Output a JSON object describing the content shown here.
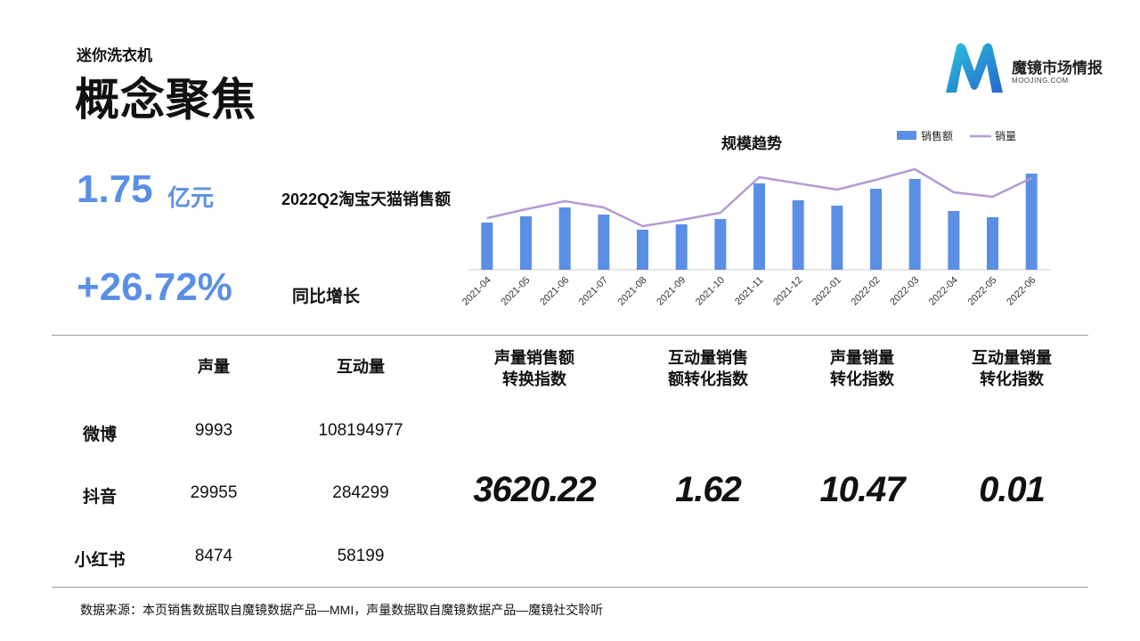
{
  "header": {
    "subtitle": "迷你洗衣机",
    "title": "概念聚焦"
  },
  "brand": {
    "name": "魔镜市场情报",
    "url": "MOOJING.COM",
    "logo_colors": [
      "#1aa3c9",
      "#3a6fd8"
    ]
  },
  "kpis": {
    "sales_value": "1.75",
    "sales_unit": "亿元",
    "sales_label": "2022Q2淘宝天猫销售额",
    "growth_value": "+26.72%",
    "growth_label": "同比增长"
  },
  "chart_data": {
    "type": "bar",
    "title": "规模趋势",
    "categories": [
      "2021-04",
      "2021-05",
      "2021-06",
      "2021-07",
      "2021-08",
      "2021-09",
      "2021-10",
      "2021-11",
      "2021-12",
      "2022-01",
      "2022-02",
      "2022-03",
      "2022-04",
      "2022-05",
      "2022-06"
    ],
    "series": [
      {
        "name": "销售额",
        "type": "bar",
        "color": "#5b8fe6",
        "values": [
          53,
          60,
          70,
          62,
          45,
          51,
          57,
          97,
          78,
          72,
          91,
          102,
          66,
          59,
          108
        ]
      },
      {
        "name": "销量",
        "type": "line",
        "color": "#b49ad6",
        "values": [
          58,
          68,
          77,
          70,
          49,
          56,
          64,
          104,
          97,
          90,
          101,
          113,
          87,
          82,
          103
        ]
      }
    ],
    "ylim": [
      0,
      120
    ],
    "legend_position": "top-right",
    "grid": false
  },
  "table": {
    "headers": [
      "声量",
      "互动量"
    ],
    "index_headers": [
      [
        "声量销售额",
        "转换指数"
      ],
      [
        "互动量销售",
        "额转化指数"
      ],
      [
        "声量销量",
        "转化指数"
      ],
      [
        "互动量销量",
        "转化指数"
      ]
    ],
    "rows": [
      {
        "platform": "微博",
        "volume": "9993",
        "interaction": "108194977"
      },
      {
        "platform": "抖音",
        "volume": "29955",
        "interaction": "284299"
      },
      {
        "platform": "小红书",
        "volume": "8474",
        "interaction": "58199"
      }
    ],
    "index_values": [
      "3620.22",
      "1.62",
      "10.47",
      "0.01"
    ]
  },
  "footer": {
    "source": "数据来源：本页销售数据取自魔镜数据产品—MMI，声量数据取自魔镜数据产品—魔镜社交聆听"
  }
}
